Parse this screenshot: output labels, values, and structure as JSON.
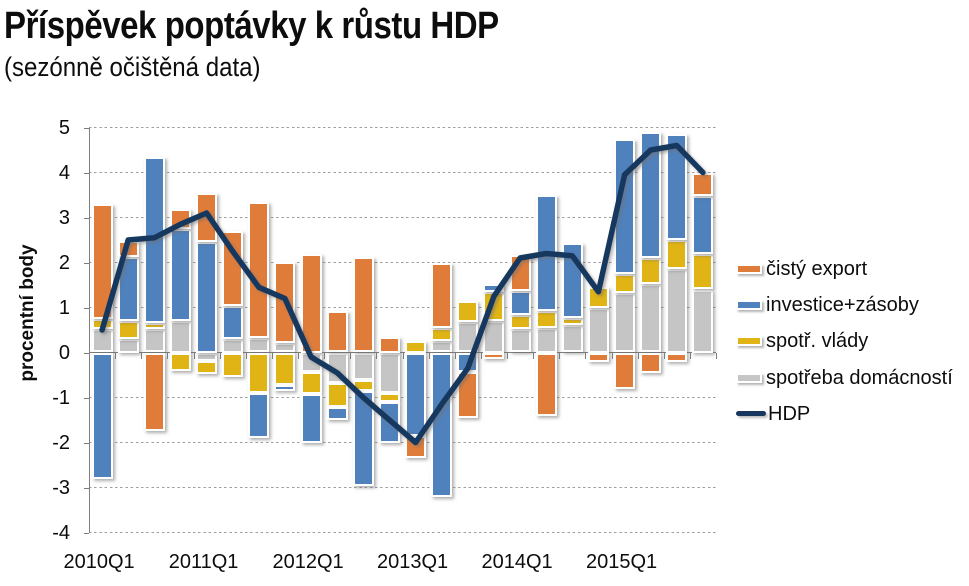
{
  "header": {
    "title": "Příspěvek poptávky k růstu HDP",
    "subtitle": "(sezónně očištěná data)"
  },
  "chart_data": {
    "type": "bar",
    "subtype": "stacked-bar-with-line",
    "title": "Příspěvek poptávky k růstu HDP",
    "subtitle": "(sezónně očištěná data)",
    "xlabel": "",
    "ylabel": "procentní body",
    "ylim": [
      -4,
      5
    ],
    "ytick_interval": 1,
    "ytick_labels": [
      "5",
      "4",
      "3",
      "2",
      "1",
      "0",
      "-1",
      "-2",
      "-3",
      "-4"
    ],
    "grid": "horizontal-dashed",
    "legend_position": "right",
    "categories": [
      "2010Q1",
      "2010Q2",
      "2010Q3",
      "2010Q4",
      "2011Q1",
      "2011Q2",
      "2011Q3",
      "2011Q4",
      "2012Q1",
      "2012Q2",
      "2012Q3",
      "2012Q4",
      "2013Q1",
      "2013Q2",
      "2013Q3",
      "2013Q4",
      "2014Q1",
      "2014Q2",
      "2014Q3",
      "2014Q4",
      "2015Q1",
      "2015Q2",
      "2015Q3",
      "2015Q4"
    ],
    "xtick_labels_shown": [
      "2010Q1",
      "2011Q1",
      "2012Q1",
      "2013Q1",
      "2014Q1",
      "2015Q1"
    ],
    "series": [
      {
        "name": "spotřeba domácností",
        "color": "#c5c5c5",
        "stack_order": 1,
        "values": [
          0.52,
          0.3,
          0.53,
          0.7,
          -0.18,
          0.3,
          0.33,
          0.22,
          -0.43,
          -0.68,
          -0.6,
          -0.9,
          0,
          0.26,
          0.68,
          0.7,
          0.52,
          0.55,
          0.62,
          1.0,
          1.32,
          1.53,
          1.85,
          1.4
        ]
      },
      {
        "name": "spotř. vlády",
        "color": "#e0b414",
        "stack_order": 2,
        "values": [
          0.23,
          0.41,
          0.12,
          -0.4,
          -0.3,
          -0.55,
          -0.9,
          -0.73,
          -0.5,
          -0.54,
          -0.25,
          -0.2,
          0.25,
          0.28,
          0.47,
          0.65,
          0.31,
          0.38,
          0.14,
          0.45,
          0.43,
          0.56,
          0.65,
          0.79
        ]
      },
      {
        "name": "investice+zásoby",
        "color": "#4f81bd",
        "stack_order": 3,
        "values": [
          -2.8,
          1.41,
          3.7,
          2.05,
          2.45,
          0.73,
          -1.0,
          -0.13,
          -1.09,
          -0.27,
          -2.11,
          -0.9,
          -1.85,
          -3.2,
          -0.43,
          0.17,
          0.54,
          2.57,
          1.67,
          0,
          3.0,
          2.81,
          2.35,
          1.28
        ]
      },
      {
        "name": "čistý export",
        "color": "#e07c39",
        "stack_order": 4,
        "values": [
          2.55,
          0.35,
          -1.75,
          0.45,
          1.1,
          1.66,
          3.01,
          1.8,
          2.2,
          0.93,
          2.12,
          0.35,
          -0.5,
          1.46,
          -1.02,
          -0.15,
          0.79,
          -1.42,
          0,
          -0.2,
          -0.8,
          -0.45,
          -0.2,
          0.52
        ]
      }
    ],
    "line_series": {
      "name": "HDP",
      "color": "#17375e",
      "values": [
        0.5,
        2.5,
        2.55,
        2.85,
        3.1,
        2.25,
        1.45,
        1.2,
        -0.1,
        -0.45,
        -1.0,
        -1.5,
        -2.0,
        -1.15,
        -0.35,
        1.25,
        2.1,
        2.2,
        2.15,
        1.35,
        3.95,
        4.5,
        4.6,
        4.0
      ]
    },
    "legend": [
      {
        "label": "čistý export",
        "color": "#e07c39",
        "kind": "box"
      },
      {
        "label": "investice+zásoby",
        "color": "#4f81bd",
        "kind": "box"
      },
      {
        "label": "spotř. vlády",
        "color": "#e0b414",
        "kind": "box"
      },
      {
        "label": "spotřeba domácností",
        "color": "#c5c5c5",
        "kind": "box"
      },
      {
        "label": "HDP",
        "color": "#17375e",
        "kind": "line"
      }
    ]
  },
  "style_colors": {
    "grid": "#a3a3a3",
    "axis": "#7f7f7f",
    "text": "#0d0d0d",
    "background": "#ffffff"
  }
}
